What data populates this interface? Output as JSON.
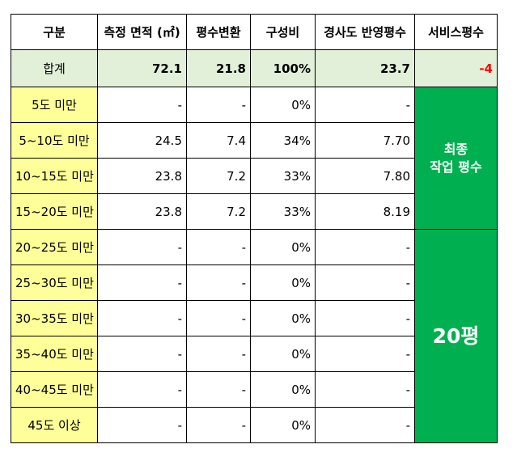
{
  "headers": [
    "구분",
    "측정 면적 (㎡)",
    "평수변환",
    "구성비",
    "경사도 반영평수",
    "서비스평수"
  ],
  "total": {
    "label": "합계",
    "area": "72.1",
    "pyeong": "21.8",
    "ratio": "100%",
    "adjusted": "23.7",
    "service": "-4"
  },
  "rows": [
    {
      "category": "5도 미만",
      "area": "-",
      "pyeong": "-",
      "ratio": "0%",
      "adjusted": "-"
    },
    {
      "category": "5~10도 미만",
      "area": "24.5",
      "pyeong": "7.4",
      "ratio": "34%",
      "adjusted": "7.70"
    },
    {
      "category": "10~15도 미만",
      "area": "23.8",
      "pyeong": "7.2",
      "ratio": "33%",
      "adjusted": "7.80"
    },
    {
      "category": "15~20도 미만",
      "area": "23.8",
      "pyeong": "7.2",
      "ratio": "33%",
      "adjusted": "8.19"
    },
    {
      "category": "20~25도 미만",
      "area": "-",
      "pyeong": "-",
      "ratio": "0%",
      "adjusted": "-"
    },
    {
      "category": "25~30도 미만",
      "area": "-",
      "pyeong": "-",
      "ratio": "0%",
      "adjusted": "-"
    },
    {
      "category": "30~35도 미만",
      "area": "-",
      "pyeong": "-",
      "ratio": "0%",
      "adjusted": "-"
    },
    {
      "category": "35~40도 미만",
      "area": "-",
      "pyeong": "-",
      "ratio": "0%",
      "adjusted": "-"
    },
    {
      "category": "40~45도 미만",
      "area": "-",
      "pyeong": "-",
      "ratio": "0%",
      "adjusted": "-"
    },
    {
      "category": "45도 이상",
      "area": "-",
      "pyeong": "-",
      "ratio": "0%",
      "adjusted": "-"
    }
  ],
  "merged": {
    "final_label_line1": "최종",
    "final_label_line2": "작업 평수",
    "final_value": "20평"
  },
  "colors": {
    "category_bg": "#ffff99",
    "total_bg": "#e2f0d9",
    "merged_bg": "#00b050",
    "service_text": "#ff0000"
  }
}
